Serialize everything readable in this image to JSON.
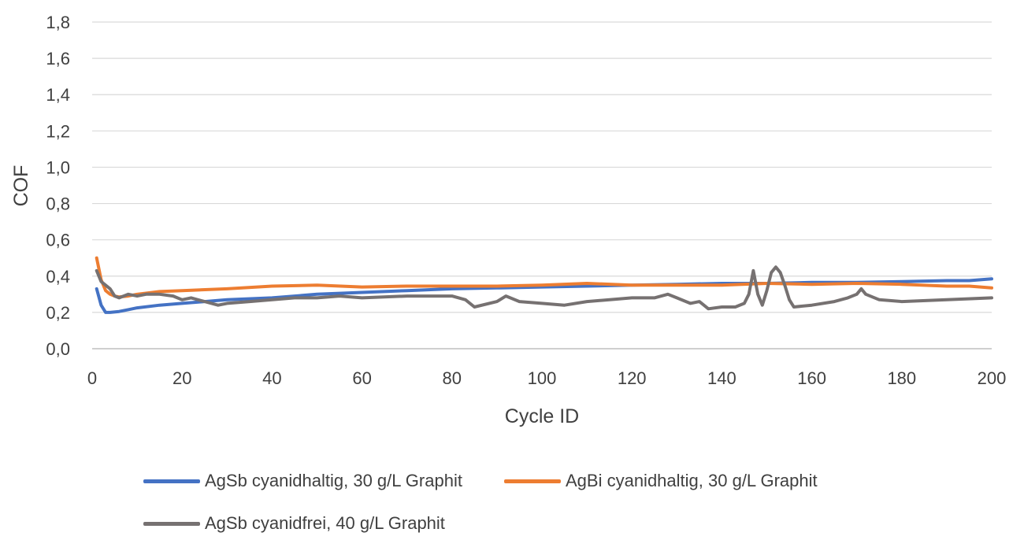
{
  "chart_data": {
    "type": "line",
    "xlabel": "Cycle ID",
    "ylabel": "COF",
    "xlim": [
      0,
      200
    ],
    "ylim": [
      0,
      1.8
    ],
    "x_ticks": [
      "0",
      "20",
      "40",
      "60",
      "80",
      "100",
      "120",
      "140",
      "160",
      "180",
      "200"
    ],
    "y_ticks": [
      "0,0",
      "0,2",
      "0,4",
      "0,6",
      "0,8",
      "1,0",
      "1,2",
      "1,4",
      "1,6",
      "1,8"
    ],
    "grid": "horizontal",
    "legend_position": "bottom",
    "series": [
      {
        "name": "AgSb cyanidhaltig, 30 g/L Graphit",
        "color": "#4472c4",
        "x": [
          1,
          2,
          3,
          4,
          6,
          8,
          10,
          15,
          20,
          25,
          30,
          40,
          50,
          60,
          70,
          80,
          90,
          100,
          110,
          120,
          130,
          140,
          150,
          160,
          170,
          180,
          190,
          195,
          200
        ],
        "y": [
          0.33,
          0.24,
          0.2,
          0.2,
          0.205,
          0.215,
          0.225,
          0.24,
          0.25,
          0.26,
          0.27,
          0.28,
          0.3,
          0.31,
          0.32,
          0.33,
          0.335,
          0.34,
          0.345,
          0.35,
          0.355,
          0.36,
          0.36,
          0.365,
          0.365,
          0.37,
          0.375,
          0.375,
          0.385
        ]
      },
      {
        "name": "AgBi cyanidhaltig, 30 g/L Graphit",
        "color": "#ed7d31",
        "x": [
          1,
          2,
          3,
          4,
          5,
          6,
          8,
          10,
          15,
          20,
          30,
          40,
          50,
          60,
          70,
          80,
          90,
          100,
          110,
          120,
          130,
          140,
          150,
          160,
          170,
          180,
          190,
          195,
          200
        ],
        "y": [
          0.5,
          0.38,
          0.32,
          0.3,
          0.29,
          0.285,
          0.29,
          0.3,
          0.315,
          0.32,
          0.33,
          0.345,
          0.35,
          0.34,
          0.345,
          0.345,
          0.345,
          0.35,
          0.36,
          0.35,
          0.35,
          0.35,
          0.36,
          0.355,
          0.36,
          0.355,
          0.345,
          0.345,
          0.335
        ]
      },
      {
        "name": "AgSb cyanidfrei, 40 g/L Graphit",
        "color": "#767171",
        "x": [
          1,
          2,
          3,
          4,
          5,
          6,
          8,
          10,
          12,
          15,
          18,
          20,
          22,
          25,
          28,
          30,
          35,
          40,
          45,
          50,
          55,
          60,
          70,
          80,
          83,
          85,
          90,
          92,
          95,
          100,
          105,
          110,
          120,
          125,
          128,
          130,
          133,
          135,
          137,
          140,
          143,
          145,
          146,
          147,
          148,
          149,
          150,
          151,
          152,
          153,
          154,
          155,
          156,
          160,
          165,
          168,
          170,
          171,
          172,
          175,
          180,
          190,
          200
        ],
        "y": [
          0.43,
          0.37,
          0.35,
          0.33,
          0.29,
          0.28,
          0.3,
          0.29,
          0.3,
          0.3,
          0.29,
          0.27,
          0.28,
          0.26,
          0.24,
          0.25,
          0.26,
          0.27,
          0.28,
          0.28,
          0.29,
          0.28,
          0.29,
          0.29,
          0.27,
          0.23,
          0.26,
          0.29,
          0.26,
          0.25,
          0.24,
          0.26,
          0.28,
          0.28,
          0.3,
          0.28,
          0.25,
          0.26,
          0.22,
          0.23,
          0.23,
          0.25,
          0.3,
          0.43,
          0.3,
          0.24,
          0.32,
          0.42,
          0.45,
          0.42,
          0.35,
          0.27,
          0.23,
          0.24,
          0.26,
          0.28,
          0.3,
          0.33,
          0.3,
          0.27,
          0.26,
          0.27,
          0.28
        ]
      }
    ]
  }
}
